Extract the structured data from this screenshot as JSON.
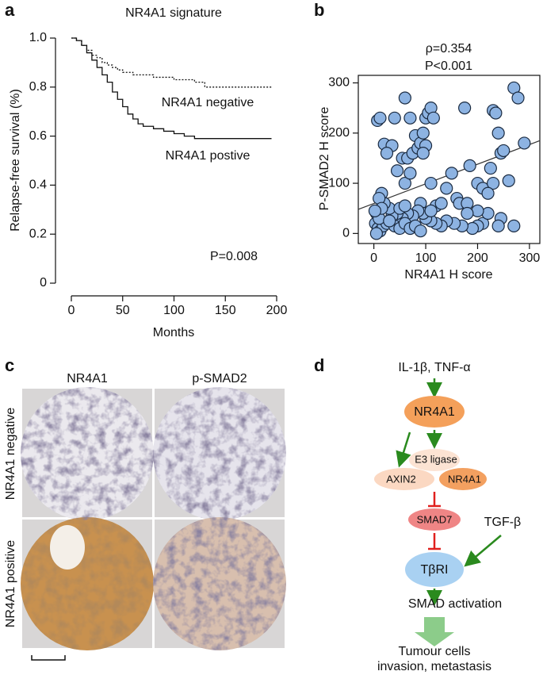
{
  "panel_labels": [
    "a",
    "b",
    "c",
    "d"
  ],
  "chart_data": [
    {
      "type": "line",
      "title": "NR4A1 signature",
      "x_label": "Months",
      "y_label": "Relapse-free survival (%)",
      "step": true,
      "xlim": [
        0,
        200
      ],
      "xticks": [
        0,
        50,
        100,
        150,
        200
      ],
      "ylim": [
        0,
        1
      ],
      "yticks": [
        0,
        0.2,
        0.4,
        0.6,
        0.8,
        {
          "value": 1,
          "label": "1.0"
        }
      ],
      "series": [
        {
          "name": "NR4A1 negative",
          "color": "#111111",
          "line_style": "dotted",
          "x": [
            0,
            5,
            10,
            15,
            20,
            25,
            30,
            35,
            40,
            45,
            50,
            60,
            70,
            80,
            90,
            100,
            110,
            120,
            130,
            195
          ],
          "values": [
            1,
            0.99,
            0.97,
            0.95,
            0.93,
            0.92,
            0.9,
            0.89,
            0.88,
            0.87,
            0.86,
            0.85,
            0.85,
            0.84,
            0.84,
            0.83,
            0.83,
            0.82,
            0.8,
            0.8
          ]
        },
        {
          "name": "NR4A1 postive",
          "color": "#111111",
          "line_style": "solid",
          "x": [
            0,
            5,
            10,
            15,
            20,
            25,
            30,
            35,
            40,
            45,
            50,
            55,
            60,
            65,
            70,
            80,
            90,
            100,
            110,
            120,
            195
          ],
          "values": [
            1,
            0.99,
            0.97,
            0.94,
            0.91,
            0.88,
            0.85,
            0.82,
            0.78,
            0.75,
            0.72,
            0.69,
            0.67,
            0.65,
            0.64,
            0.63,
            0.62,
            0.61,
            0.6,
            0.59,
            0.59
          ]
        }
      ],
      "annotations": [
        "P=0.008"
      ]
    },
    {
      "type": "scatter",
      "x_label": "NR4A1 H score",
      "y_label": "P-SMAD2 H score",
      "xlim": [
        -30,
        320
      ],
      "xticks": [
        0,
        100,
        200,
        300
      ],
      "ylim": [
        -20,
        315
      ],
      "yticks": [
        0,
        100,
        200,
        300
      ],
      "annotations": [
        "ρ=0.354",
        "P<0.001"
      ],
      "fit_line": {
        "color": "#333333",
        "x": [
          -30,
          320
        ],
        "values": [
          48,
          185
        ]
      },
      "series": [
        {
          "color": "#8db3e2",
          "x": [
            7,
            12,
            20,
            35,
            25,
            40,
            55,
            60,
            65,
            70,
            75,
            80,
            85,
            90,
            95,
            100,
            105,
            110,
            115,
            60,
            70,
            100,
            95,
            90,
            110,
            45,
            140,
            150,
            175,
            185,
            200,
            210,
            160,
            165,
            180,
            230,
            235,
            240,
            245,
            250,
            260,
            270,
            278,
            290,
            230,
            225,
            220,
            245,
            270,
            240,
            210,
            200,
            190,
            170,
            155,
            140,
            130,
            120,
            110,
            100,
            95,
            85,
            75,
            65,
            55,
            45,
            35,
            30,
            20,
            15,
            10,
            5,
            3,
            8,
            12,
            18,
            25,
            40,
            50,
            60,
            70,
            80,
            90,
            5,
            10,
            15,
            2,
            30,
            50,
            60,
            220,
            200,
            180,
            120,
            130,
            110
          ],
          "values": [
            225,
            230,
            178,
            175,
            160,
            230,
            150,
            270,
            150,
            230,
            160,
            195,
            170,
            180,
            200,
            230,
            240,
            250,
            230,
            100,
            120,
            175,
            160,
            60,
            100,
            125,
            90,
            120,
            250,
            135,
            100,
            90,
            70,
            60,
            60,
            245,
            240,
            200,
            160,
            165,
            105,
            290,
            270,
            180,
            100,
            130,
            80,
            30,
            15,
            15,
            20,
            15,
            10,
            15,
            20,
            25,
            15,
            20,
            25,
            30,
            40,
            45,
            35,
            40,
            30,
            40,
            35,
            50,
            60,
            80,
            70,
            40,
            20,
            10,
            5,
            15,
            20,
            15,
            10,
            20,
            10,
            15,
            5,
            0,
            30,
            50,
            45,
            25,
            50,
            55,
            40,
            45,
            40,
            55,
            60,
            45
          ]
        }
      ]
    }
  ],
  "image_panel": {
    "columns": [
      "NR4A1",
      "p-SMAD2"
    ],
    "rows": [
      "NR4A1 negative",
      "NR4A1 positive"
    ]
  },
  "diagram": {
    "stimulus": "IL-1β, TNF-α",
    "nodes": [
      "NR4A1",
      "E3 ligase",
      "AXIN2",
      "NR4A1",
      "SMAD7",
      "TβRI"
    ],
    "side_signal": "TGF-β",
    "activation": "SMAD activation",
    "outcome": [
      "Tumour cells",
      "invasion, metastasis"
    ]
  }
}
